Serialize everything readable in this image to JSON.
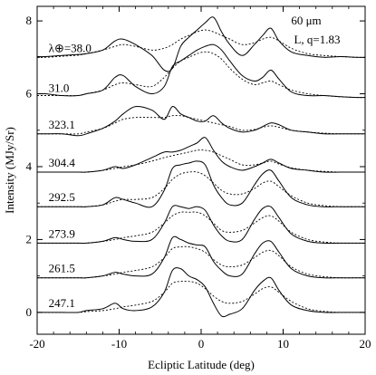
{
  "chart_data": {
    "type": "line",
    "xlabel": "Ecliptic Latitude (deg)",
    "ylabel": "Intensity (MJy/Sr)",
    "xlim": [
      -20,
      20
    ],
    "ylim": [
      -0.6,
      8.4
    ],
    "xticks": [
      -20,
      -10,
      0,
      10,
      20
    ],
    "yticks": [
      0,
      2,
      4,
      6,
      8
    ],
    "annotations": {
      "wavelength": "60 μm",
      "model": "L, q=1.83"
    },
    "lambda_prefix": "λ⊕=",
    "latitudes": [
      -19,
      -17,
      -15,
      -14,
      -12,
      -10.5,
      -9.5,
      -8,
      -6,
      -4.5,
      -3.5,
      -2.5,
      -1.5,
      -0.5,
      0.5,
      1.5,
      2.5,
      3.5,
      5,
      6.5,
      7.5,
      8.5,
      9.5,
      11,
      13,
      15,
      17,
      19
    ],
    "series": [
      {
        "label": "38.0",
        "offset": 7.0,
        "observed": [
          0.02,
          0.05,
          0.08,
          0.1,
          0.2,
          0.45,
          0.5,
          0.35,
          0.05,
          -0.35,
          -0.3,
          0.3,
          0.55,
          0.75,
          0.95,
          1.1,
          0.7,
          0.35,
          0.05,
          0.35,
          0.6,
          0.8,
          0.45,
          0.15,
          0.05,
          0.0,
          0.02,
          0.0
        ],
        "model": [
          0.0,
          0.03,
          0.06,
          0.1,
          0.2,
          0.3,
          0.35,
          0.3,
          0.2,
          0.25,
          0.35,
          0.5,
          0.6,
          0.7,
          0.75,
          0.7,
          0.6,
          0.5,
          0.35,
          0.4,
          0.5,
          0.55,
          0.45,
          0.25,
          0.1,
          0.05,
          0.02,
          0.0
        ]
      },
      {
        "label": "31.0",
        "offset": 5.9,
        "observed": [
          0.1,
          0.05,
          0.05,
          0.1,
          0.2,
          0.55,
          0.6,
          0.3,
          0.1,
          0.3,
          0.85,
          1.0,
          1.15,
          1.3,
          1.4,
          1.45,
          1.3,
          1.0,
          0.6,
          0.45,
          0.55,
          0.75,
          0.5,
          0.15,
          0.05,
          0.05,
          0.02,
          0.0
        ],
        "model": [
          0.05,
          0.05,
          0.05,
          0.1,
          0.2,
          0.35,
          0.4,
          0.35,
          0.3,
          0.55,
          0.8,
          1.0,
          1.1,
          1.2,
          1.25,
          1.2,
          1.05,
          0.8,
          0.5,
          0.35,
          0.4,
          0.45,
          0.35,
          0.2,
          0.1,
          0.05,
          0.02,
          0.0
        ]
      },
      {
        "label": "323.1",
        "offset": 4.9,
        "observed": [
          0.0,
          0.0,
          -0.05,
          0.0,
          0.15,
          0.35,
          0.55,
          0.75,
          0.65,
          0.4,
          0.75,
          0.55,
          0.45,
          0.35,
          0.35,
          0.5,
          0.3,
          0.15,
          0.05,
          0.1,
          0.2,
          0.3,
          0.25,
          0.1,
          0.05,
          0.0,
          0.0,
          0.0
        ],
        "model": [
          0.0,
          0.0,
          0.0,
          0.05,
          0.15,
          0.3,
          0.4,
          0.45,
          0.45,
          0.45,
          0.5,
          0.5,
          0.45,
          0.4,
          0.35,
          0.3,
          0.25,
          0.2,
          0.1,
          0.12,
          0.18,
          0.22,
          0.18,
          0.1,
          0.05,
          0.02,
          0.0,
          0.0
        ]
      },
      {
        "label": "304.4",
        "offset": 3.85,
        "observed": [
          0.0,
          0.0,
          0.0,
          0.0,
          0.05,
          0.15,
          0.1,
          0.2,
          0.4,
          0.55,
          0.55,
          0.6,
          0.7,
          0.8,
          0.95,
          0.6,
          0.3,
          0.15,
          0.05,
          0.15,
          0.25,
          0.35,
          0.25,
          0.1,
          0.05,
          0.0,
          0.0,
          0.0
        ],
        "model": [
          0.0,
          0.0,
          0.0,
          0.0,
          0.05,
          0.1,
          0.15,
          0.2,
          0.3,
          0.4,
          0.45,
          0.5,
          0.55,
          0.6,
          0.6,
          0.55,
          0.45,
          0.35,
          0.2,
          0.2,
          0.25,
          0.3,
          0.22,
          0.12,
          0.05,
          0.02,
          0.0,
          0.0
        ]
      },
      {
        "label": "292.5",
        "offset": 2.9,
        "observed": [
          0.0,
          0.0,
          0.0,
          0.0,
          0.05,
          0.25,
          0.2,
          0.1,
          0.0,
          0.45,
          1.05,
          1.15,
          1.2,
          1.25,
          1.15,
          0.6,
          0.25,
          0.05,
          0.1,
          0.6,
          0.9,
          1.0,
          0.7,
          0.25,
          0.05,
          0.0,
          0.0,
          0.0
        ],
        "model": [
          0.0,
          0.0,
          0.0,
          0.0,
          0.05,
          0.15,
          0.2,
          0.2,
          0.25,
          0.5,
          0.75,
          0.9,
          0.95,
          0.95,
          0.85,
          0.65,
          0.45,
          0.35,
          0.35,
          0.5,
          0.65,
          0.7,
          0.55,
          0.3,
          0.1,
          0.03,
          0.0,
          0.0
        ]
      },
      {
        "label": "273.9",
        "offset": 1.9,
        "observed": [
          0.0,
          0.0,
          0.0,
          0.0,
          0.05,
          0.15,
          0.1,
          0.05,
          0.1,
          0.55,
          1.0,
          1.0,
          0.95,
          1.0,
          0.9,
          0.5,
          0.2,
          0.05,
          0.1,
          0.65,
          0.95,
          1.0,
          0.7,
          0.25,
          0.05,
          0.0,
          0.0,
          0.0
        ],
        "model": [
          0.0,
          0.0,
          0.0,
          0.0,
          0.05,
          0.1,
          0.15,
          0.2,
          0.3,
          0.55,
          0.75,
          0.85,
          0.85,
          0.85,
          0.75,
          0.55,
          0.35,
          0.3,
          0.35,
          0.55,
          0.7,
          0.75,
          0.6,
          0.3,
          0.1,
          0.03,
          0.0,
          0.0
        ]
      },
      {
        "label": "261.5",
        "offset": 0.95,
        "observed": [
          0.0,
          0.0,
          0.0,
          0.0,
          0.05,
          0.15,
          0.1,
          0.05,
          0.1,
          0.55,
          1.1,
          1.05,
          0.95,
          0.9,
          0.85,
          0.45,
          0.2,
          0.05,
          0.1,
          0.65,
          0.95,
          1.0,
          0.7,
          0.25,
          0.05,
          0.0,
          0.0,
          0.0
        ],
        "model": [
          0.0,
          0.0,
          0.0,
          0.0,
          0.05,
          0.1,
          0.15,
          0.2,
          0.3,
          0.55,
          0.8,
          0.85,
          0.85,
          0.8,
          0.7,
          0.5,
          0.35,
          0.3,
          0.35,
          0.55,
          0.7,
          0.75,
          0.6,
          0.3,
          0.1,
          0.03,
          0.0,
          0.0
        ]
      },
      {
        "label": "247.1",
        "offset": 0.0,
        "observed": [
          0.0,
          0.0,
          0.0,
          0.05,
          0.1,
          0.25,
          0.1,
          0.05,
          0.15,
          0.55,
          1.15,
          1.2,
          1.0,
          0.9,
          0.7,
          0.25,
          -0.1,
          -0.05,
          0.1,
          0.6,
          0.85,
          0.95,
          0.6,
          0.2,
          0.05,
          0.0,
          0.0,
          0.0
        ],
        "model": [
          0.0,
          0.0,
          0.0,
          0.02,
          0.05,
          0.1,
          0.15,
          0.2,
          0.3,
          0.55,
          0.8,
          0.85,
          0.85,
          0.8,
          0.65,
          0.45,
          0.3,
          0.25,
          0.3,
          0.5,
          0.65,
          0.7,
          0.55,
          0.3,
          0.1,
          0.03,
          0.0,
          0.0
        ]
      }
    ]
  }
}
